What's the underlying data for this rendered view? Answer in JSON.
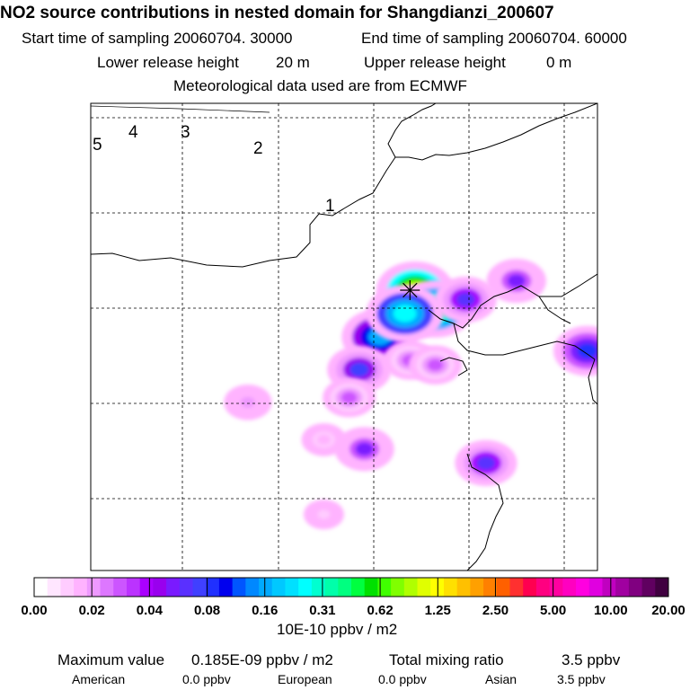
{
  "header": {
    "title": "NO2 source contributions in nested domain for Shangdianzi_200607",
    "start_label": "Start time of sampling 20060704. 30000",
    "end_label": "End time of sampling 20060704. 60000",
    "lower_label": "Lower release height",
    "lower_value": "20 m",
    "upper_label": "Upper release height",
    "upper_value": "0 m",
    "met_label": "Meteorological data used are from ECMWF"
  },
  "map": {
    "contour_labels": [
      "5",
      "4",
      "3",
      "2",
      "1"
    ],
    "site_marker": "site-asterisk"
  },
  "colorbar": {
    "ticks": [
      "0.00",
      "0.02",
      "0.04",
      "0.08",
      "0.16",
      "0.31",
      "0.62",
      "1.25",
      "2.50",
      "5.00",
      "10.00",
      "20.00"
    ],
    "unit": "10E-10 ppbv / m2",
    "colors": [
      "#ffffff",
      "#ffe6ff",
      "#ffccff",
      "#ffb3ff",
      "#ee99ff",
      "#dd77ff",
      "#cc55ff",
      "#bb33ff",
      "#aa00ff",
      "#9900ee",
      "#7a1aff",
      "#5a30ff",
      "#4040ff",
      "#2030ff",
      "#0000ee",
      "#0055ff",
      "#0088ff",
      "#00aaff",
      "#00c8ff",
      "#00e0ff",
      "#00ffff",
      "#00ffd0",
      "#00ffaa",
      "#00ff80",
      "#00ff40",
      "#00e000",
      "#40ff00",
      "#80ff00",
      "#b0ff00",
      "#e0ff00",
      "#ffff00",
      "#ffe000",
      "#ffc000",
      "#ffa000",
      "#ff8000",
      "#ff6000",
      "#ff3030",
      "#ff0050",
      "#ff0080",
      "#ff00a0",
      "#ff00c0",
      "#ff00e0",
      "#e000e0",
      "#c000c0",
      "#a000a0",
      "#800080",
      "#600060",
      "#400040"
    ]
  },
  "footer": {
    "max_label": "Maximum value",
    "max_value": "0.185E-09 ppbv / m2",
    "total_label": "Total mixing ratio",
    "total_value": "3.5 ppbv",
    "american_label": "American",
    "american_value": "0.0 ppbv",
    "european_label": "European",
    "european_value": "0.0 ppbv",
    "asian_label": "Asian",
    "asian_value": "3.5 ppbv"
  },
  "chart_data": {
    "type": "heatmap",
    "colorbar_ticks": [
      0.0,
      0.02,
      0.04,
      0.08,
      0.16,
      0.31,
      0.62,
      1.25,
      2.5,
      5.0,
      10.0,
      20.0
    ],
    "max_value": 0.185,
    "blobs": [
      {
        "col": 0.64,
        "row": 0.4,
        "value": 0.9
      },
      {
        "col": 0.68,
        "row": 0.44,
        "value": 0.5
      },
      {
        "col": 0.57,
        "row": 0.5,
        "value": 0.16
      },
      {
        "col": 0.62,
        "row": 0.45,
        "value": 0.25
      },
      {
        "col": 0.74,
        "row": 0.42,
        "value": 0.06
      },
      {
        "col": 0.53,
        "row": 0.57,
        "value": 0.07
      },
      {
        "col": 0.63,
        "row": 0.55,
        "value": 0.03
      },
      {
        "col": 0.68,
        "row": 0.56,
        "value": 0.03
      },
      {
        "col": 0.84,
        "row": 0.38,
        "value": 0.05
      },
      {
        "col": 0.98,
        "row": 0.53,
        "value": 0.09
      },
      {
        "col": 0.78,
        "row": 0.77,
        "value": 0.06
      },
      {
        "col": 0.54,
        "row": 0.74,
        "value": 0.05
      },
      {
        "col": 0.31,
        "row": 0.64,
        "value": 0.02
      },
      {
        "col": 0.51,
        "row": 0.63,
        "value": 0.03
      },
      {
        "col": 0.46,
        "row": 0.72,
        "value": 0.015
      },
      {
        "col": 0.46,
        "row": 0.88,
        "value": 0.01
      }
    ],
    "site": {
      "col": 0.63,
      "row": 0.4
    }
  }
}
